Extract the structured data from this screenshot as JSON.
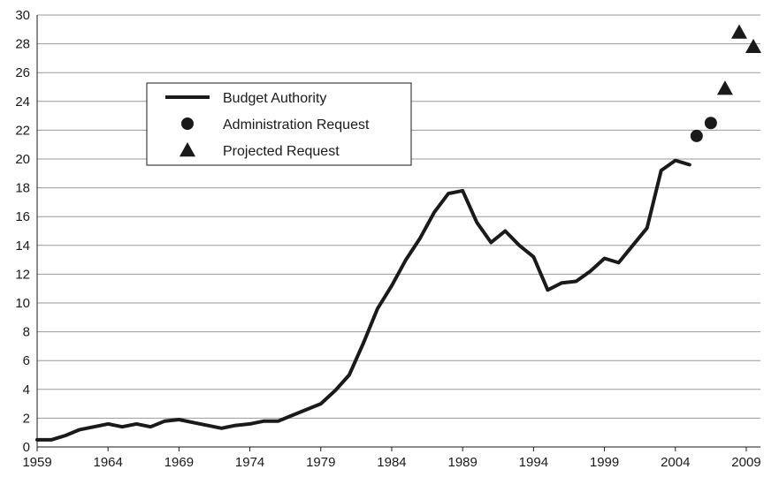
{
  "chart_data": {
    "type": "line",
    "title": "",
    "xlabel": "",
    "ylabel": "",
    "xlim": [
      1959,
      2010
    ],
    "ylim": [
      0,
      30
    ],
    "x_ticks": [
      "1959",
      "1964",
      "1969",
      "1974",
      "1979",
      "1984",
      "1989",
      "1994",
      "1999",
      "2004",
      "2009"
    ],
    "y_ticks": [
      "0",
      "2",
      "4",
      "6",
      "8",
      "10",
      "12",
      "14",
      "16",
      "18",
      "20",
      "22",
      "24",
      "26",
      "28",
      "30"
    ],
    "grid": "horizontal",
    "legend": {
      "placement": "upper-left",
      "entries": [
        {
          "label": "Budget Authority",
          "marker": "line"
        },
        {
          "label": "Administration Request",
          "marker": "circle"
        },
        {
          "label": "Projected Request",
          "marker": "triangle"
        }
      ]
    },
    "series": [
      {
        "name": "Budget Authority",
        "style": "line",
        "color": "#1a1a1a",
        "points": [
          [
            1959,
            0.5
          ],
          [
            1960,
            0.5
          ],
          [
            1961,
            0.8
          ],
          [
            1962,
            1.2
          ],
          [
            1963,
            1.4
          ],
          [
            1964,
            1.6
          ],
          [
            1965,
            1.4
          ],
          [
            1966,
            1.6
          ],
          [
            1967,
            1.4
          ],
          [
            1968,
            1.8
          ],
          [
            1969,
            1.9
          ],
          [
            1970,
            1.7
          ],
          [
            1971,
            1.5
          ],
          [
            1972,
            1.3
          ],
          [
            1973,
            1.5
          ],
          [
            1974,
            1.6
          ],
          [
            1975,
            1.8
          ],
          [
            1976,
            1.8
          ],
          [
            1977,
            2.2
          ],
          [
            1978,
            2.6
          ],
          [
            1979,
            3.0
          ],
          [
            1980,
            3.9
          ],
          [
            1981,
            5.0
          ],
          [
            1982,
            7.2
          ],
          [
            1983,
            9.6
          ],
          [
            1984,
            11.2
          ],
          [
            1985,
            13.0
          ],
          [
            1986,
            14.5
          ],
          [
            1987,
            16.3
          ],
          [
            1988,
            17.6
          ],
          [
            1989,
            17.8
          ],
          [
            1990,
            15.6
          ],
          [
            1991,
            14.2
          ],
          [
            1992,
            15.0
          ],
          [
            1993,
            14.0
          ],
          [
            1994,
            13.2
          ],
          [
            1995,
            10.9
          ],
          [
            1996,
            11.4
          ],
          [
            1997,
            11.5
          ],
          [
            1998,
            12.2
          ],
          [
            1999,
            13.1
          ],
          [
            2000,
            12.8
          ],
          [
            2001,
            14.0
          ],
          [
            2002,
            15.2
          ],
          [
            2003,
            19.2
          ],
          [
            2004,
            19.9
          ],
          [
            2005,
            19.6
          ]
        ]
      },
      {
        "name": "Administration Request",
        "style": "circle",
        "color": "#1a1a1a",
        "points": [
          [
            2005.5,
            21.6
          ],
          [
            2006.5,
            22.5
          ]
        ]
      },
      {
        "name": "Projected Request",
        "style": "triangle",
        "color": "#1a1a1a",
        "points": [
          [
            2007.5,
            24.9
          ],
          [
            2008.5,
            28.8
          ],
          [
            2009.5,
            27.8
          ]
        ]
      }
    ]
  }
}
